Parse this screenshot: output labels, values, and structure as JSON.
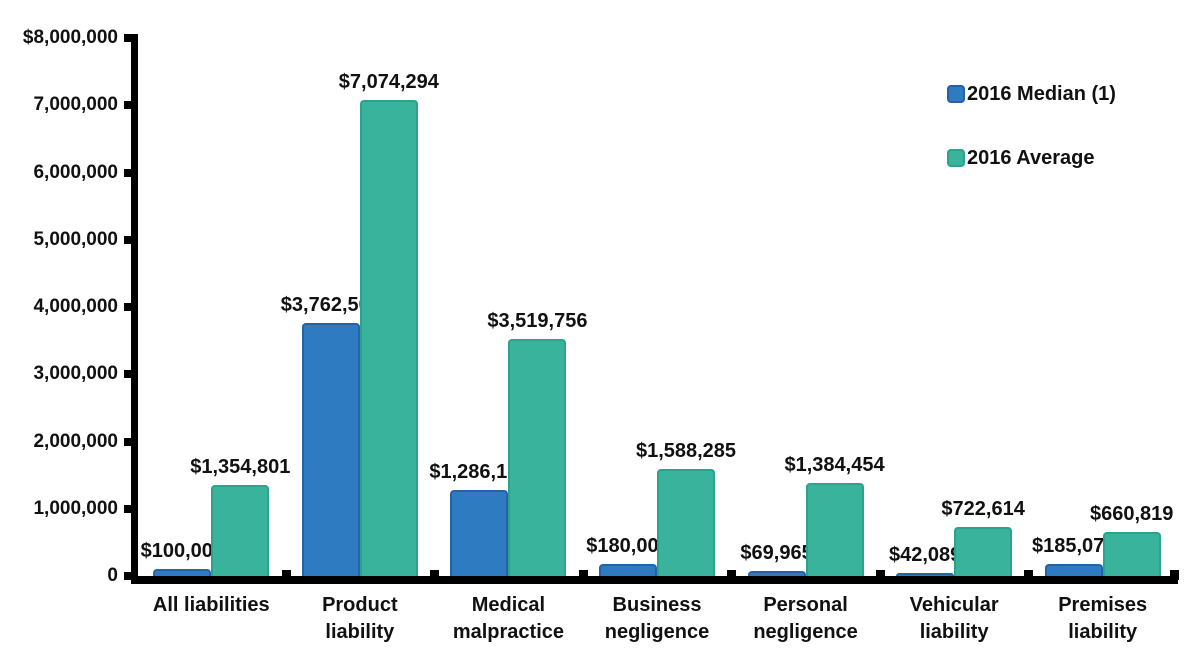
{
  "chart_data": {
    "type": "bar",
    "title": "",
    "categories": [
      "All liabilities",
      "Product liability",
      "Medical malpractice",
      "Business negligence",
      "Personal negligence",
      "Vehicular liability",
      "Premises liability"
    ],
    "category_lines": [
      [
        "All liabilities"
      ],
      [
        "Product",
        "liability"
      ],
      [
        "Medical",
        "malpractice"
      ],
      [
        "Business",
        "negligence"
      ],
      [
        "Personal",
        "negligence"
      ],
      [
        "Vehicular",
        "liability"
      ],
      [
        "Premises",
        "liability"
      ]
    ],
    "series": [
      {
        "name": "2016 Median (1)",
        "color": "#2F7BC1",
        "border_color": "#2563A8",
        "values": [
          100000,
          3762500,
          1286150,
          180000,
          69965,
          42089,
          185079
        ],
        "labels": [
          "$100,000",
          "$3,762,500",
          "$1,286,150",
          "$180,000",
          "$69,965",
          "$42,089",
          "$185,079"
        ]
      },
      {
        "name": "2016 Average",
        "color": "#3AB39D",
        "border_color": "#2AA38C",
        "values": [
          1354801,
          7074294,
          3519756,
          1588285,
          1384454,
          722614,
          660819
        ],
        "labels": [
          "$1,354,801",
          "$7,074,294",
          "$3,519,756",
          "$1,588,285",
          "$1,384,454",
          "$722,614",
          "$660,819"
        ]
      }
    ],
    "y_axis": {
      "min": 0,
      "max": 8000000,
      "tick_interval": 1000000,
      "tick_labels_top_to_bottom": [
        "$8,000,000",
        "7,000,000",
        "6,000,000",
        "5,000,000",
        "4,000,000",
        "3,000,000",
        "2,000,000",
        "1,000,000",
        "0"
      ]
    },
    "xlabel": "",
    "ylabel": "",
    "grid": false,
    "legend_position": "top-right",
    "axis_color": "#000000",
    "text_color": "#111111",
    "background_color": "#ffffff"
  }
}
